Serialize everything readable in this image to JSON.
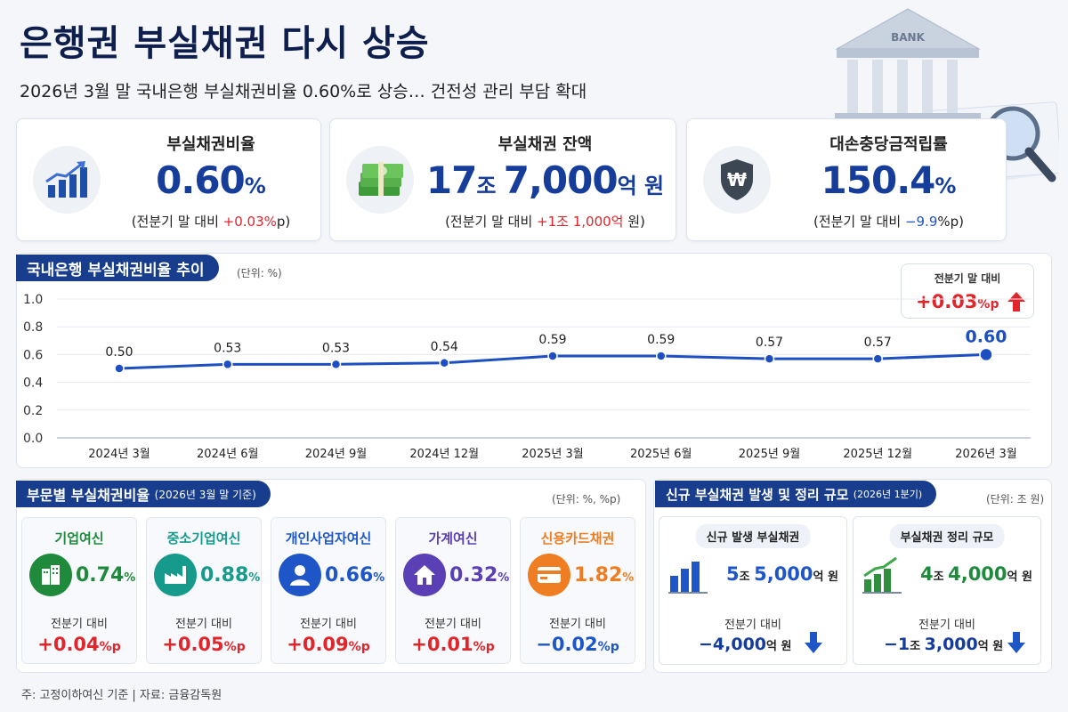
{
  "header": {
    "title": "은행권 부실채권 다시 상승",
    "subtitle": "2026년 3월 말 국내은행 부실채권비율 0.60%로 상승… 건전성 관리 부담 확대",
    "art_label": "BANK"
  },
  "kpis": [
    {
      "label": "부실채권비율",
      "value": "0.60",
      "unit": "%",
      "change_prefix": "(전분기 말 대비 ",
      "change": "+0.03%",
      "change_suffix": "p)",
      "icon": "chart-up-icon"
    },
    {
      "label": "부실채권 잔액",
      "value_a": "17",
      "unit_a": "조 ",
      "value_b": "7,000",
      "unit_b": "억 원",
      "change_prefix": "(전분기 말 대비 ",
      "change": "+1조 1,000억",
      "change_suffix": " 원)",
      "icon": "money-icon"
    },
    {
      "label": "대손충당금적립률",
      "value": "150.4",
      "unit": "%",
      "change_prefix": "(전분기 말 대비 ",
      "change": "−9.9",
      "change_suffix": "%p)",
      "icon": "won-shield-icon"
    }
  ],
  "trend": {
    "title": "국내은행 부실채권비율 추이",
    "unit": "(단위: %)",
    "callout_label": "전분기 말 대비",
    "callout_value": "+0.03",
    "callout_unit": "%p"
  },
  "chart_data": {
    "type": "line",
    "title": "국내은행 부실채권비율 추이",
    "ylabel": "",
    "xlabel": "",
    "categories": [
      "2024년 3월",
      "2024년 6월",
      "2024년 9월",
      "2024년 12월",
      "2025년 3월",
      "2025년 6월",
      "2025년 9월",
      "2025년 12월",
      "2026년 3월"
    ],
    "values": [
      0.5,
      0.53,
      0.53,
      0.54,
      0.59,
      0.59,
      0.57,
      0.57,
      0.6
    ],
    "labels": [
      "0.50",
      "0.53",
      "0.53",
      "0.54",
      "0.59",
      "0.59",
      "0.57",
      "0.57",
      "0.60"
    ],
    "yticks": [
      "0.0",
      "0.2",
      "0.4",
      "0.6",
      "0.8",
      "1.0"
    ],
    "ylim": [
      0,
      1.0
    ],
    "grid": true,
    "color": "#1e4fc2"
  },
  "segments": {
    "title": "부문별 부실채권비율",
    "title_note": "(2026년 3월 말 기준)",
    "unit": "(단위: %, %p)",
    "change_label": "전분기 대비",
    "items": [
      {
        "name": "기업여신",
        "value": "0.74",
        "unit": "%",
        "change": "+0.04",
        "change_unit": "%p",
        "color": "#1f8a3b",
        "icon": "building-icon"
      },
      {
        "name": "중소기업여신",
        "value": "0.88",
        "unit": "%",
        "change": "+0.05",
        "change_unit": "%p",
        "color": "#159a8c",
        "icon": "factory-icon"
      },
      {
        "name": "개인사업자여신",
        "value": "0.66",
        "unit": "%",
        "change": "+0.09",
        "change_unit": "%p",
        "color": "#1e56c8",
        "icon": "person-icon"
      },
      {
        "name": "가계여신",
        "value": "0.32",
        "unit": "%",
        "change": "+0.01",
        "change_unit": "%p",
        "color": "#5a3fb5",
        "icon": "house-icon"
      },
      {
        "name": "신용카드채권",
        "value": "1.82",
        "unit": "%",
        "change": "−0.02",
        "change_unit": "%p",
        "color": "#ef7d22",
        "icon": "card-icon"
      }
    ]
  },
  "flows": {
    "title": "신규 부실채권 발생 및 정리 규모",
    "title_note": "(2026년 1분기)",
    "unit": "(단위: 조 원)",
    "change_label": "전분기 대비",
    "items": [
      {
        "name": "신규 발생 부실채권",
        "value_a": "5",
        "unit_a": "조 ",
        "value_b": "5,000",
        "unit_b": "억 원",
        "change": "−4,000",
        "change_unit": "억 원",
        "color": "#1e56c8",
        "icon": "bar-chart-icon"
      },
      {
        "name": "부실채권 정리 규모",
        "value_a": "4",
        "unit_a": "조 ",
        "value_b": "4,000",
        "unit_b": "억 원",
        "change_a": "−1",
        "change_unit_a": "조 ",
        "change_b": "3,000",
        "change_unit_b": "억 원",
        "color": "#1f8a3b",
        "icon": "growth-chart-icon"
      }
    ]
  },
  "footer": {
    "note": "주: 고정이하여신 기준  |  자료: 금융감독원"
  }
}
